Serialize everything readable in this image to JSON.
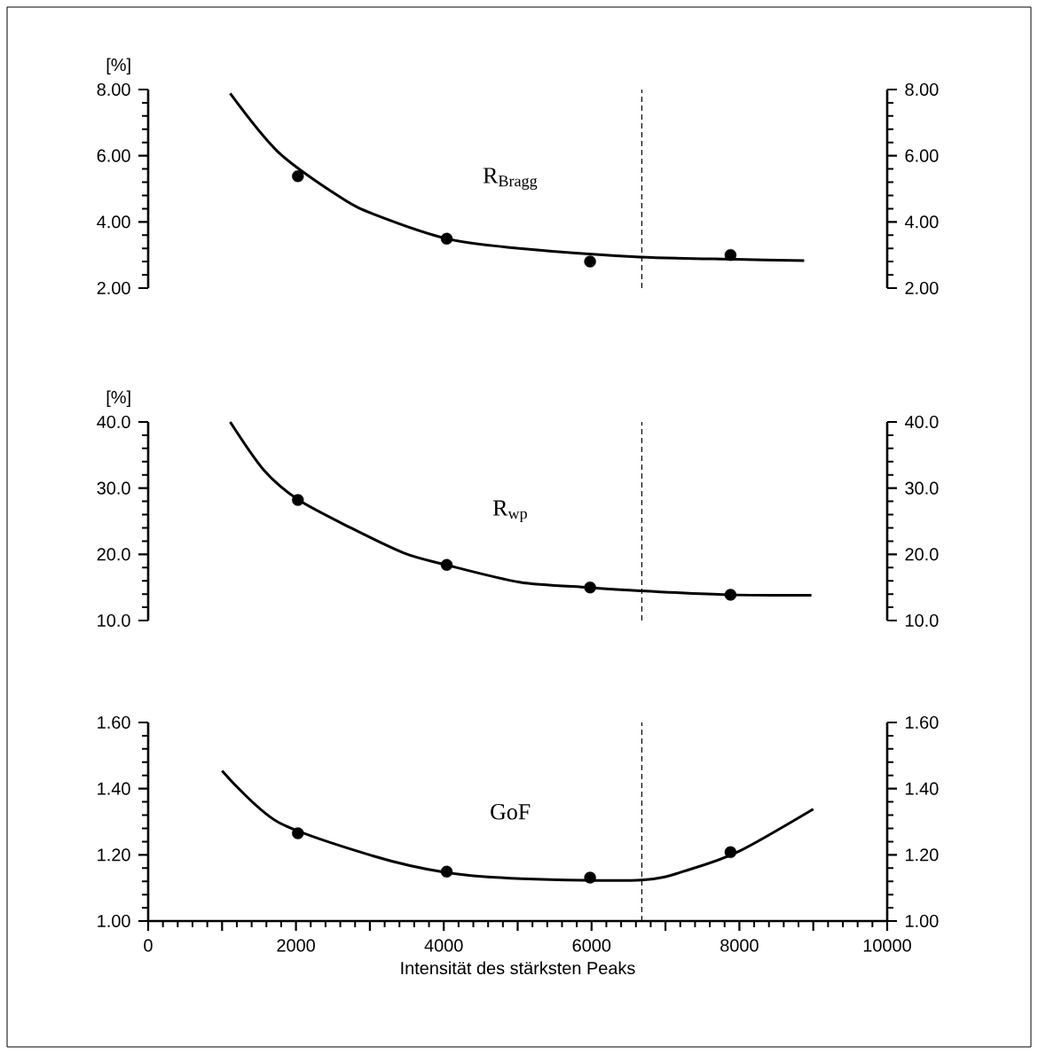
{
  "chart_data": [
    {
      "type": "scatter",
      "ylabel": "[%]",
      "annotations": [
        "R$_{Bragg}$"
      ],
      "xlim": [
        0,
        10000
      ],
      "ylim": [
        2,
        8
      ],
      "yticks": [
        {
          "value": 2,
          "label": "2.00"
        },
        {
          "value": 4,
          "label": "4.00"
        },
        {
          "value": 6,
          "label": "6.00"
        },
        {
          "value": 8,
          "label": "8.00"
        }
      ],
      "y2lim": [
        2,
        8
      ],
      "y2ticks": [
        {
          "value": 2,
          "label": "2.00"
        },
        {
          "value": 4,
          "label": "4.00"
        },
        {
          "value": 6,
          "label": "6.00"
        },
        {
          "value": 8,
          "label": "8.00"
        }
      ],
      "tick_labels": "y",
      "ref_lines": [
        {
          "axis": "x",
          "value": 6680,
          "line_style": "dashed"
        }
      ],
      "series": [
        {
          "marker": "circle",
          "color": "#000000",
          "x": [
            2026,
            4040,
            5980,
            7880
          ],
          "values": [
            5.38,
            3.49,
            2.8,
            3.0
          ]
        },
        {
          "type": "line",
          "marker": "none",
          "color": "#000000",
          "x": [
            1110,
            1760,
            2611,
            3068,
            4047,
            5026,
            6658,
            7963,
            8877
          ],
          "values": [
            7.88,
            6.11,
            4.73,
            4.22,
            3.49,
            3.2,
            2.94,
            2.87,
            2.83
          ]
        }
      ]
    },
    {
      "type": "scatter",
      "ylabel": "[%]",
      "annotations": [
        "R$_{wp}$"
      ],
      "xlim": [
        0,
        10000
      ],
      "ylim": [
        10,
        40
      ],
      "yticks": [
        {
          "value": 10,
          "label": "10.0"
        },
        {
          "value": 20,
          "label": "20.0"
        },
        {
          "value": 30,
          "label": "30.0"
        },
        {
          "value": 40,
          "label": "40.0"
        }
      ],
      "y2lim": [
        10,
        40
      ],
      "y2ticks": [
        {
          "value": 10,
          "label": "10.0"
        },
        {
          "value": 20,
          "label": "20.0"
        },
        {
          "value": 30,
          "label": "30.0"
        },
        {
          "value": 40,
          "label": "40.0"
        }
      ],
      "tick_labels": "y",
      "ref_lines": [
        {
          "axis": "x",
          "value": 6680,
          "line_style": "dashed"
        }
      ],
      "series": [
        {
          "marker": "circle",
          "color": "#000000",
          "x": [
            2026,
            4040,
            5980,
            7880
          ],
          "values": [
            28.2,
            18.4,
            15.0,
            13.9
          ]
        },
        {
          "type": "line",
          "marker": "none",
          "color": "#000000",
          "x": [
            1110,
            1567,
            2037,
            2742,
            3460,
            4034,
            5026,
            5953,
            6658,
            7846,
            8975
          ],
          "values": [
            40.0,
            32.7,
            28.2,
            24.0,
            20.2,
            18.4,
            15.8,
            15.0,
            14.5,
            13.9,
            13.8
          ]
        }
      ]
    },
    {
      "type": "scatter",
      "xlabel": "Intensität des stärksten Peaks",
      "annotations": [
        "GoF"
      ],
      "xlim": [
        0,
        10000
      ],
      "xticks": [
        0,
        {
          "value": 1000,
          "label": null
        },
        2000,
        {
          "value": 3000,
          "label": null
        },
        4000,
        {
          "value": 5000,
          "label": null
        },
        6000,
        {
          "value": 7000,
          "label": null
        },
        8000,
        {
          "value": 9000,
          "label": null
        },
        10000
      ],
      "ylim": [
        1,
        1.6
      ],
      "yticks": [
        {
          "value": 1,
          "label": "1.00"
        },
        {
          "value": 1.2,
          "label": "1.20"
        },
        {
          "value": 1.4,
          "label": "1.40"
        },
        {
          "value": 1.6,
          "label": "1.60"
        }
      ],
      "y2lim": [
        1,
        1.6
      ],
      "y2ticks": [
        {
          "value": 1,
          "label": "1.00"
        },
        {
          "value": 1.2,
          "label": "1.20"
        },
        {
          "value": 1.4,
          "label": "1.40"
        },
        {
          "value": 1.6,
          "label": "1.60"
        }
      ],
      "ref_lines": [
        {
          "axis": "x",
          "value": 6680,
          "line_style": "dashed"
        }
      ],
      "series": [
        {
          "marker": "circle",
          "color": "#000000",
          "x": [
            2026,
            4040,
            5980,
            7880
          ],
          "values": [
            1.265,
            1.149,
            1.131,
            1.208
          ]
        },
        {
          "type": "line",
          "marker": "none",
          "color": "#000000",
          "x": [
            1000,
            1750,
            3040,
            4050,
            5050,
            6680,
            7330,
            8000,
            9000
          ],
          "values": [
            1.454,
            1.3,
            1.197,
            1.146,
            1.128,
            1.124,
            1.156,
            1.211,
            1.338
          ]
        }
      ]
    }
  ]
}
